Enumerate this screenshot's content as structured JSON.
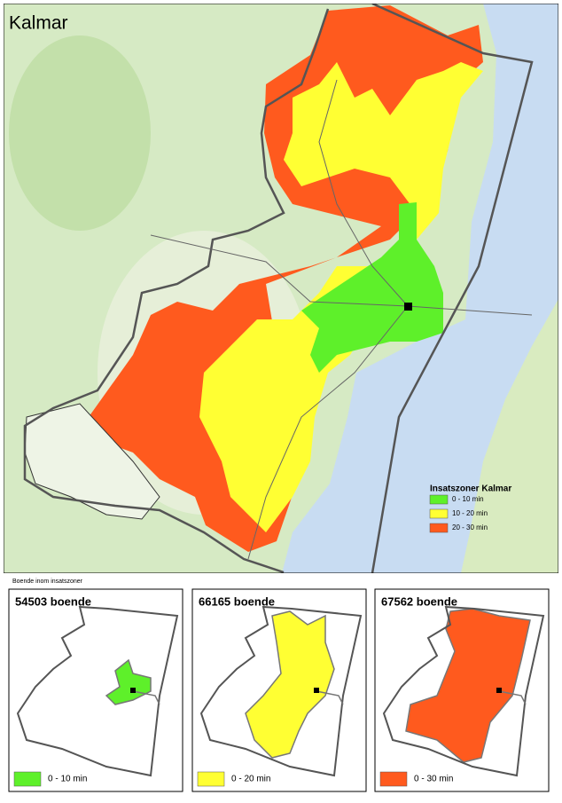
{
  "map": {
    "title": "Kalmar",
    "legend": {
      "title": "Insatszoner Kalmar",
      "entries": [
        {
          "label": "0 - 10 min",
          "color": "#5ef02a"
        },
        {
          "label": "10 - 20 min",
          "color": "#ffff33"
        },
        {
          "label": "20 - 30 min",
          "color": "#ff5a1e"
        }
      ]
    }
  },
  "section_title": "Boende inom insatszoner",
  "panels": [
    {
      "title": "54503 boende",
      "legend": "0 - 10 min",
      "color": "#5ef02a"
    },
    {
      "title": "66165 boende",
      "legend": "0 - 20 min",
      "color": "#ffff33"
    },
    {
      "title": "67562 boende",
      "legend": "0 - 30 min",
      "color": "#ff5a1e"
    }
  ]
}
